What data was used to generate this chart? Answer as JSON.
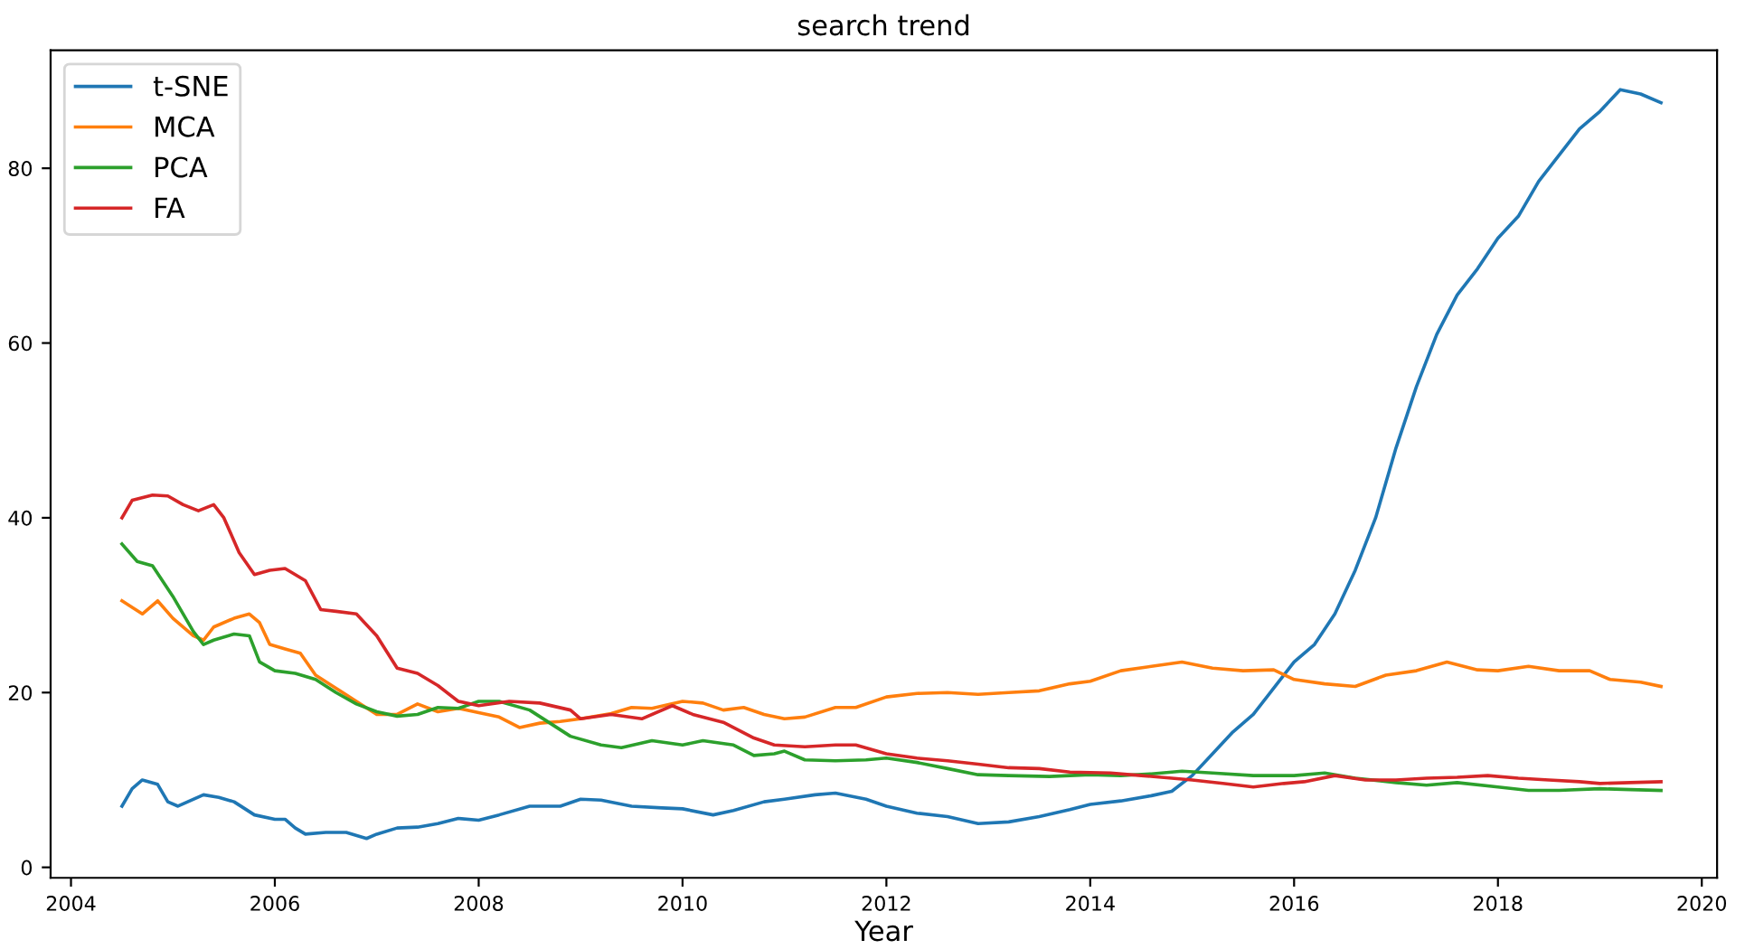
{
  "chart_data": {
    "type": "line",
    "title": "search trend",
    "xlabel": "Year",
    "xlim": [
      2003.8,
      2020.15
    ],
    "ylim": [
      -1.2,
      93.5
    ],
    "xticks": [
      2004,
      2006,
      2008,
      2010,
      2012,
      2014,
      2016,
      2018,
      2020
    ],
    "yticks": [
      0,
      20,
      40,
      60,
      80
    ],
    "grid": false,
    "legend": "top left",
    "marker": "none",
    "line_style": "solid",
    "series": [
      {
        "name": "t-SNE",
        "color": "#1f77b4",
        "x": [
          2004.5,
          2004.6,
          2004.7,
          2004.85,
          2004.95,
          2005.05,
          2005.3,
          2005.45,
          2005.6,
          2005.8,
          2006.0,
          2006.1,
          2006.2,
          2006.3,
          2006.5,
          2006.7,
          2006.9,
          2007.0,
          2007.2,
          2007.4,
          2007.6,
          2007.8,
          2008.0,
          2008.2,
          2008.5,
          2008.8,
          2009.0,
          2009.2,
          2009.5,
          2009.8,
          2010.0,
          2010.3,
          2010.5,
          2010.8,
          2011.0,
          2011.3,
          2011.5,
          2011.8,
          2012.0,
          2012.3,
          2012.6,
          2012.9,
          2013.2,
          2013.5,
          2013.8,
          2014.0,
          2014.3,
          2014.6,
          2014.8,
          2015.0,
          2015.2,
          2015.4,
          2015.6,
          2015.8,
          2016.0,
          2016.2,
          2016.4,
          2016.6,
          2016.8,
          2017.0,
          2017.2,
          2017.4,
          2017.6,
          2017.8,
          2018.0,
          2018.2,
          2018.4,
          2018.6,
          2018.8,
          2019.0,
          2019.2,
          2019.4,
          2019.6
        ],
        "values": [
          7,
          9,
          10,
          9.5,
          7.5,
          7,
          8.3,
          8,
          7.5,
          6,
          5.5,
          5.5,
          4.5,
          3.8,
          4,
          4,
          3.3,
          3.8,
          4.5,
          4.6,
          5,
          5.6,
          5.4,
          6,
          7,
          7,
          7.8,
          7.7,
          7,
          6.8,
          6.7,
          6,
          6.5,
          7.5,
          7.8,
          8.3,
          8.5,
          7.8,
          7,
          6.2,
          5.8,
          5,
          5.2,
          5.8,
          6.6,
          7.2,
          7.6,
          8.2,
          8.7,
          10.5,
          13,
          15.5,
          17.5,
          20.5,
          23.5,
          25.5,
          29,
          34,
          40,
          48,
          55,
          61,
          65.5,
          68.5,
          72,
          74.5,
          78.5,
          81.5,
          84.5,
          86.5,
          89,
          88.5,
          87.5
        ]
      },
      {
        "name": "MCA",
        "color": "#ff7f0e",
        "x": [
          2004.5,
          2004.7,
          2004.85,
          2005.0,
          2005.2,
          2005.3,
          2005.4,
          2005.6,
          2005.75,
          2005.85,
          2005.95,
          2006.1,
          2006.25,
          2006.4,
          2006.6,
          2006.8,
          2007.0,
          2007.2,
          2007.4,
          2007.6,
          2007.8,
          2008.0,
          2008.2,
          2008.4,
          2008.6,
          2008.8,
          2009.0,
          2009.3,
          2009.5,
          2009.7,
          2010.0,
          2010.2,
          2010.4,
          2010.6,
          2010.8,
          2011.0,
          2011.2,
          2011.5,
          2011.7,
          2012.0,
          2012.3,
          2012.6,
          2012.9,
          2013.2,
          2013.5,
          2013.8,
          2014.0,
          2014.3,
          2014.6,
          2014.9,
          2015.2,
          2015.5,
          2015.8,
          2016.0,
          2016.3,
          2016.6,
          2016.9,
          2017.2,
          2017.5,
          2017.8,
          2018.0,
          2018.3,
          2018.6,
          2018.9,
          2019.1,
          2019.4,
          2019.6
        ],
        "values": [
          30.5,
          29,
          30.5,
          28.5,
          26.5,
          26,
          27.5,
          28.5,
          29,
          28,
          25.5,
          25,
          24.5,
          22,
          20.5,
          19,
          17.5,
          17.5,
          18.7,
          17.8,
          18.2,
          17.7,
          17.2,
          16,
          16.5,
          16.7,
          17,
          17.6,
          18.3,
          18.2,
          19,
          18.8,
          18,
          18.3,
          17.5,
          17,
          17.2,
          18.3,
          18.3,
          19.5,
          19.9,
          20,
          19.8,
          20,
          20.2,
          21,
          21.3,
          22.5,
          23,
          23.5,
          22.8,
          22.5,
          22.6,
          21.5,
          21,
          20.7,
          22,
          22.5,
          23.5,
          22.6,
          22.5,
          23,
          22.5,
          22.5,
          21.5,
          21.2,
          20.7
        ]
      },
      {
        "name": "PCA",
        "color": "#2ca02c",
        "x": [
          2004.5,
          2004.65,
          2004.8,
          2005.0,
          2005.2,
          2005.3,
          2005.4,
          2005.6,
          2005.75,
          2005.85,
          2006.0,
          2006.2,
          2006.4,
          2006.6,
          2006.8,
          2007.0,
          2007.2,
          2007.4,
          2007.6,
          2007.8,
          2008.0,
          2008.2,
          2008.5,
          2008.7,
          2008.9,
          2009.2,
          2009.4,
          2009.7,
          2010.0,
          2010.2,
          2010.5,
          2010.7,
          2010.9,
          2011.0,
          2011.2,
          2011.5,
          2011.8,
          2012.0,
          2012.3,
          2012.6,
          2012.9,
          2013.2,
          2013.6,
          2014.0,
          2014.3,
          2014.6,
          2014.9,
          2015.2,
          2015.6,
          2016.0,
          2016.3,
          2016.6,
          2017.0,
          2017.3,
          2017.6,
          2018.0,
          2018.3,
          2018.6,
          2019.0,
          2019.3,
          2019.6
        ],
        "values": [
          37,
          35,
          34.5,
          31,
          27,
          25.5,
          26,
          26.7,
          26.5,
          23.5,
          22.5,
          22.2,
          21.5,
          20,
          18.7,
          17.8,
          17.3,
          17.5,
          18.3,
          18.2,
          19,
          19,
          18,
          16.5,
          15,
          14,
          13.7,
          14.5,
          14,
          14.5,
          14,
          12.8,
          13,
          13.3,
          12.3,
          12.2,
          12.3,
          12.5,
          12,
          11.3,
          10.6,
          10.5,
          10.4,
          10.6,
          10.5,
          10.7,
          11,
          10.8,
          10.5,
          10.5,
          10.8,
          10.2,
          9.7,
          9.4,
          9.7,
          9.2,
          8.8,
          8.8,
          9,
          8.9,
          8.8
        ]
      },
      {
        "name": "FA",
        "color": "#d62728",
        "x": [
          2004.5,
          2004.6,
          2004.8,
          2004.95,
          2005.1,
          2005.25,
          2005.4,
          2005.5,
          2005.65,
          2005.8,
          2005.95,
          2006.1,
          2006.3,
          2006.45,
          2006.6,
          2006.8,
          2007.0,
          2007.2,
          2007.4,
          2007.6,
          2007.8,
          2008.0,
          2008.3,
          2008.6,
          2008.9,
          2009.0,
          2009.3,
          2009.6,
          2009.9,
          2010.1,
          2010.4,
          2010.7,
          2010.9,
          2011.2,
          2011.5,
          2011.7,
          2012.0,
          2012.3,
          2012.6,
          2012.9,
          2013.2,
          2013.5,
          2013.8,
          2014.2,
          2014.5,
          2014.8,
          2015.0,
          2015.3,
          2015.6,
          2015.9,
          2016.1,
          2016.4,
          2016.7,
          2017.0,
          2017.3,
          2017.6,
          2017.9,
          2018.2,
          2018.5,
          2018.8,
          2019.0,
          2019.3,
          2019.6
        ],
        "values": [
          40,
          42,
          42.6,
          42.5,
          41.5,
          40.8,
          41.5,
          40,
          36,
          33.5,
          34,
          34.2,
          32.8,
          29.5,
          29.3,
          29,
          26.5,
          22.8,
          22.2,
          20.8,
          19,
          18.5,
          19,
          18.8,
          18,
          17,
          17.5,
          17,
          18.5,
          17.5,
          16.6,
          14.8,
          14,
          13.8,
          14,
          14,
          13,
          12.5,
          12.2,
          11.8,
          11.4,
          11.3,
          10.9,
          10.8,
          10.5,
          10.2,
          10,
          9.6,
          9.2,
          9.6,
          9.8,
          10.5,
          10,
          10,
          10.2,
          10.3,
          10.5,
          10.2,
          10,
          9.8,
          9.6,
          9.7,
          9.8
        ]
      }
    ]
  }
}
